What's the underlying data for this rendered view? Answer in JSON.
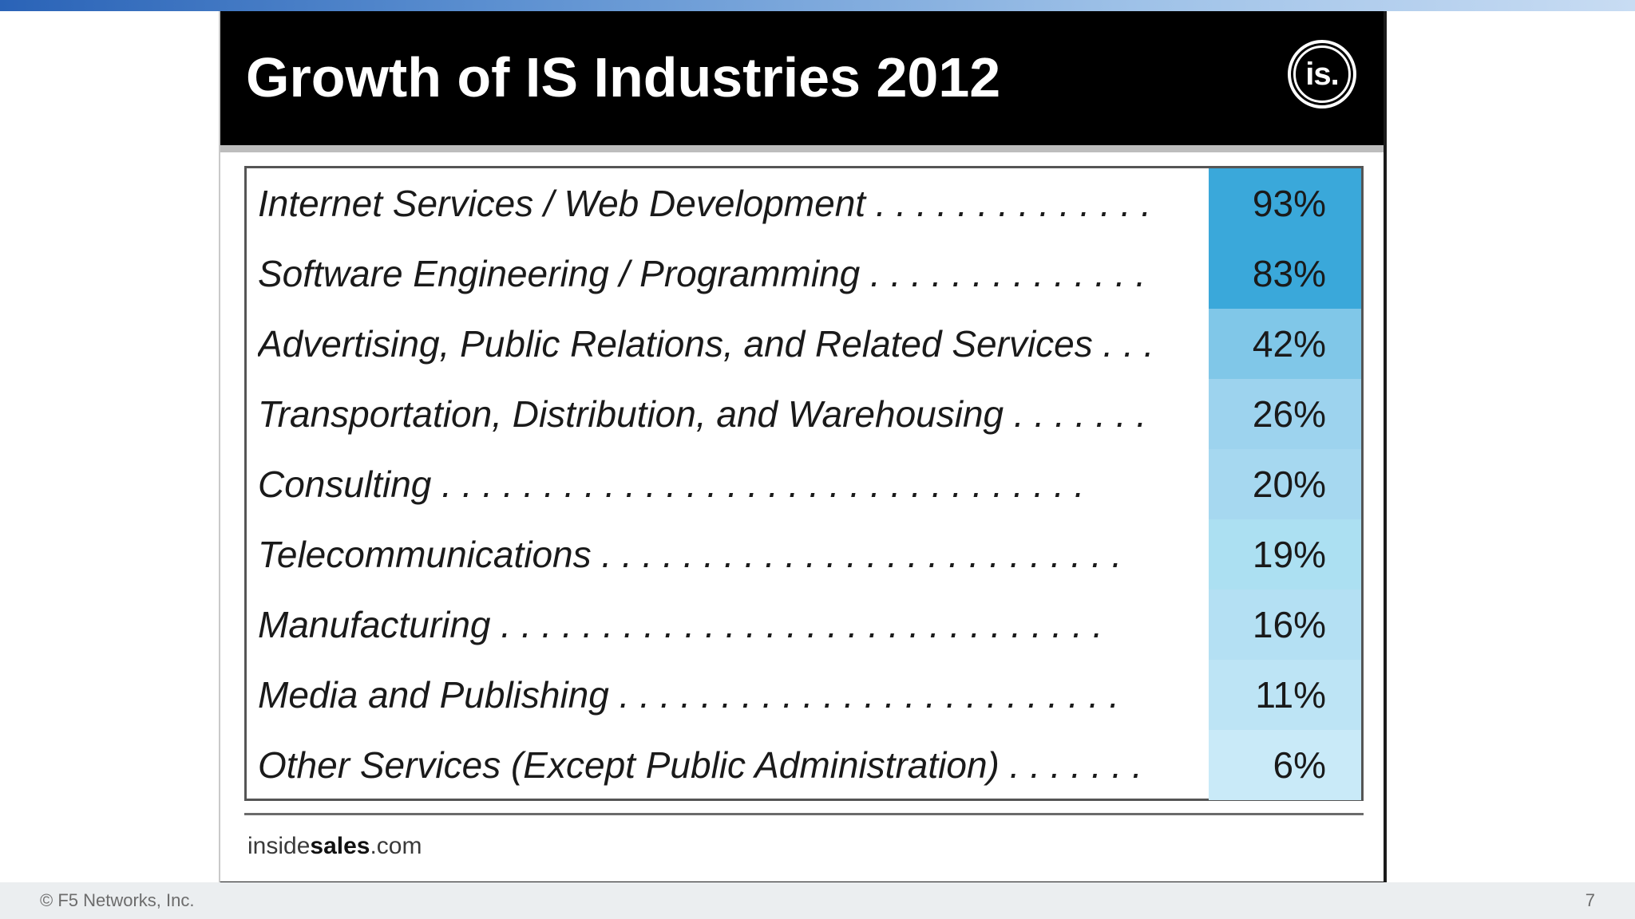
{
  "slide": {
    "title": "Growth of IS Industries 2012",
    "logo_text": "is.",
    "source_prefix": "inside",
    "source_bold": "sales",
    "source_suffix": ".com"
  },
  "colors": {
    "header": "#000000",
    "top_strip_start": "#2a63b7",
    "value_shades": [
      "#3aa8da",
      "#3aa8da",
      "#80c7e8",
      "#9dd3ee",
      "#a6d8f0",
      "#ace0f2",
      "#b4e0f3",
      "#bde4f5",
      "#c9eaf8"
    ]
  },
  "rows": [
    {
      "label": "Internet Services / Web Development . . . . . . . . . . . . . .",
      "value": "93%"
    },
    {
      "label": "Software Engineering / Programming . . . . . . . . . . . . . .",
      "value": "83%"
    },
    {
      "label": "Advertising, Public Relations, and Related Services . . .",
      "value": "42%"
    },
    {
      "label": "Transportation, Distribution, and Warehousing . . . . . . .",
      "value": "26%"
    },
    {
      "label": "Consulting . . . . . . . . . . . . . . . . . . . . . . . . . . . . . . . .",
      "value": "20%"
    },
    {
      "label": "Telecommunications . . . . . . . . . . . . . . . . . . . . . . . . . .",
      "value": "19%"
    },
    {
      "label": "Manufacturing . . . . . . . . . . . . . . . . . . . . . . . . . . . . . .",
      "value": "16%"
    },
    {
      "label": "Media and Publishing . . . . . . . . . . . . . . . . . . . . . . . . .",
      "value": "11%"
    },
    {
      "label": "Other Services (Except Public Administration) . . . . . . .",
      "value": "6%"
    }
  ],
  "footer": {
    "copyright": "© F5 Networks, Inc.",
    "page_number": "7"
  }
}
